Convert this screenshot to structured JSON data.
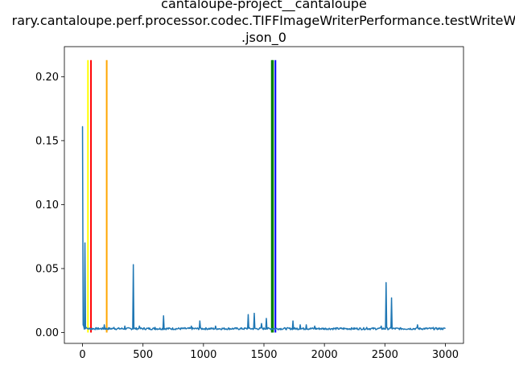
{
  "chart_data": {
    "type": "line",
    "title_lines": [
      "cantaloupe-project__cantaloupe",
      "rary.cantaloupe.perf.processor.codec.TIFFImageWriterPerformance.testWriteW",
      ".json_0"
    ],
    "xlabel": "",
    "ylabel": "",
    "xlim": [
      -150,
      3150
    ],
    "ylim": [
      -0.0085,
      0.2235
    ],
    "x_ticks": [
      0,
      500,
      1000,
      1500,
      2000,
      2500,
      3000
    ],
    "y_ticks": [
      0.0,
      0.05,
      0.1,
      0.15,
      0.2
    ],
    "x_tick_labels": [
      "0",
      "500",
      "1000",
      "1500",
      "2000",
      "2500",
      "3000"
    ],
    "y_tick_labels": [
      "0.00",
      "0.05",
      "0.10",
      "0.15",
      "0.20"
    ],
    "grid": false,
    "series": [
      {
        "color": "#1f77b4",
        "baseline": 0.003,
        "x_max": 3000,
        "peaks": [
          {
            "x": 0,
            "y": 0.161
          },
          {
            "x": 5,
            "y": 0.006
          },
          {
            "x": 10,
            "y": 0.005
          },
          {
            "x": 20,
            "y": 0.07
          },
          {
            "x": 30,
            "y": 0.004
          },
          {
            "x": 180,
            "y": 0.006
          },
          {
            "x": 260,
            "y": 0.004
          },
          {
            "x": 350,
            "y": 0.005
          },
          {
            "x": 420,
            "y": 0.053
          },
          {
            "x": 470,
            "y": 0.005
          },
          {
            "x": 600,
            "y": 0.004
          },
          {
            "x": 670,
            "y": 0.013
          },
          {
            "x": 900,
            "y": 0.005
          },
          {
            "x": 970,
            "y": 0.009
          },
          {
            "x": 1100,
            "y": 0.005
          },
          {
            "x": 1370,
            "y": 0.014
          },
          {
            "x": 1420,
            "y": 0.015
          },
          {
            "x": 1480,
            "y": 0.007
          },
          {
            "x": 1520,
            "y": 0.011
          },
          {
            "x": 1740,
            "y": 0.009
          },
          {
            "x": 1800,
            "y": 0.006
          },
          {
            "x": 1850,
            "y": 0.006
          },
          {
            "x": 1920,
            "y": 0.005
          },
          {
            "x": 2350,
            "y": 0.004
          },
          {
            "x": 2470,
            "y": 0.005
          },
          {
            "x": 2510,
            "y": 0.039
          },
          {
            "x": 2555,
            "y": 0.027
          },
          {
            "x": 2770,
            "y": 0.006
          },
          {
            "x": 2900,
            "y": 0.004
          }
        ]
      }
    ],
    "vlines": [
      {
        "x": 45,
        "color": "#ffff00",
        "ymax": 0.213
      },
      {
        "x": 70,
        "color": "#ff0000",
        "ymax": 0.213
      },
      {
        "x": 200,
        "color": "#ffa500",
        "ymax": 0.213
      },
      {
        "x": 1565,
        "color": "#008000",
        "ymax": 0.213
      },
      {
        "x": 1575,
        "color": "#008000",
        "ymax": 0.213
      },
      {
        "x": 1595,
        "color": "#0000ff",
        "ymax": 0.213
      }
    ]
  }
}
